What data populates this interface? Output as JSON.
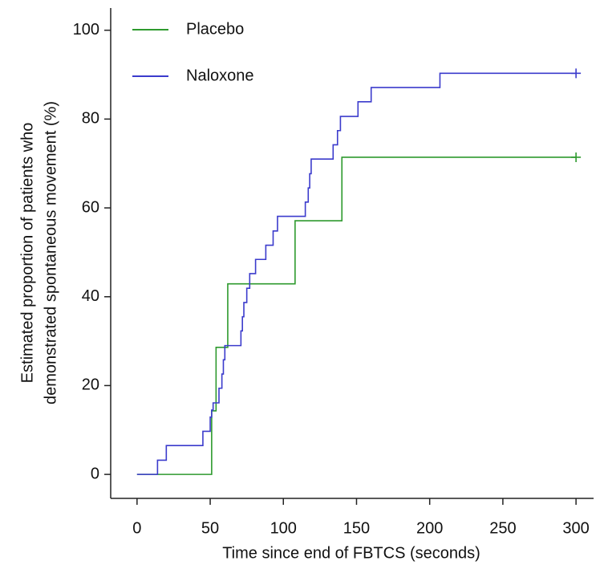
{
  "chart_data": {
    "type": "step",
    "xlabel": "Time since end of FBTCS (seconds)",
    "ylabel": [
      "Estimated proportion of patients who",
      "demonstrated spontaneous movement  (%)"
    ],
    "xlim": [
      -18,
      312
    ],
    "ylim": [
      -5.4,
      105
    ],
    "xticks": [
      0,
      50,
      100,
      150,
      200,
      250,
      300
    ],
    "yticks": [
      0,
      20,
      40,
      60,
      80,
      100
    ],
    "legend": "top-left",
    "series": [
      {
        "name": "Placebo",
        "color": "#2e9a2e",
        "x": [
          0,
          51,
          54,
          62,
          108,
          140,
          300
        ],
        "values": [
          0,
          14.3,
          28.6,
          42.9,
          57.1,
          71.4,
          71.4
        ]
      },
      {
        "name": "Naloxone",
        "color": "#3b3bcc",
        "x": [
          0,
          14,
          20,
          45,
          50,
          51,
          52,
          56,
          58,
          59,
          60,
          71,
          72,
          73,
          75,
          77,
          81,
          88,
          93,
          96,
          115,
          117,
          118,
          119,
          134,
          137,
          139,
          151,
          160,
          207,
          300
        ],
        "values": [
          0,
          3.2,
          6.5,
          9.7,
          12.9,
          14.5,
          16.1,
          19.4,
          22.6,
          25.8,
          29.0,
          32.3,
          35.5,
          38.7,
          41.9,
          45.2,
          48.4,
          51.6,
          54.8,
          58.1,
          61.3,
          64.5,
          67.7,
          71.0,
          74.2,
          77.4,
          80.6,
          83.9,
          87.1,
          90.3,
          90.3
        ]
      }
    ]
  }
}
